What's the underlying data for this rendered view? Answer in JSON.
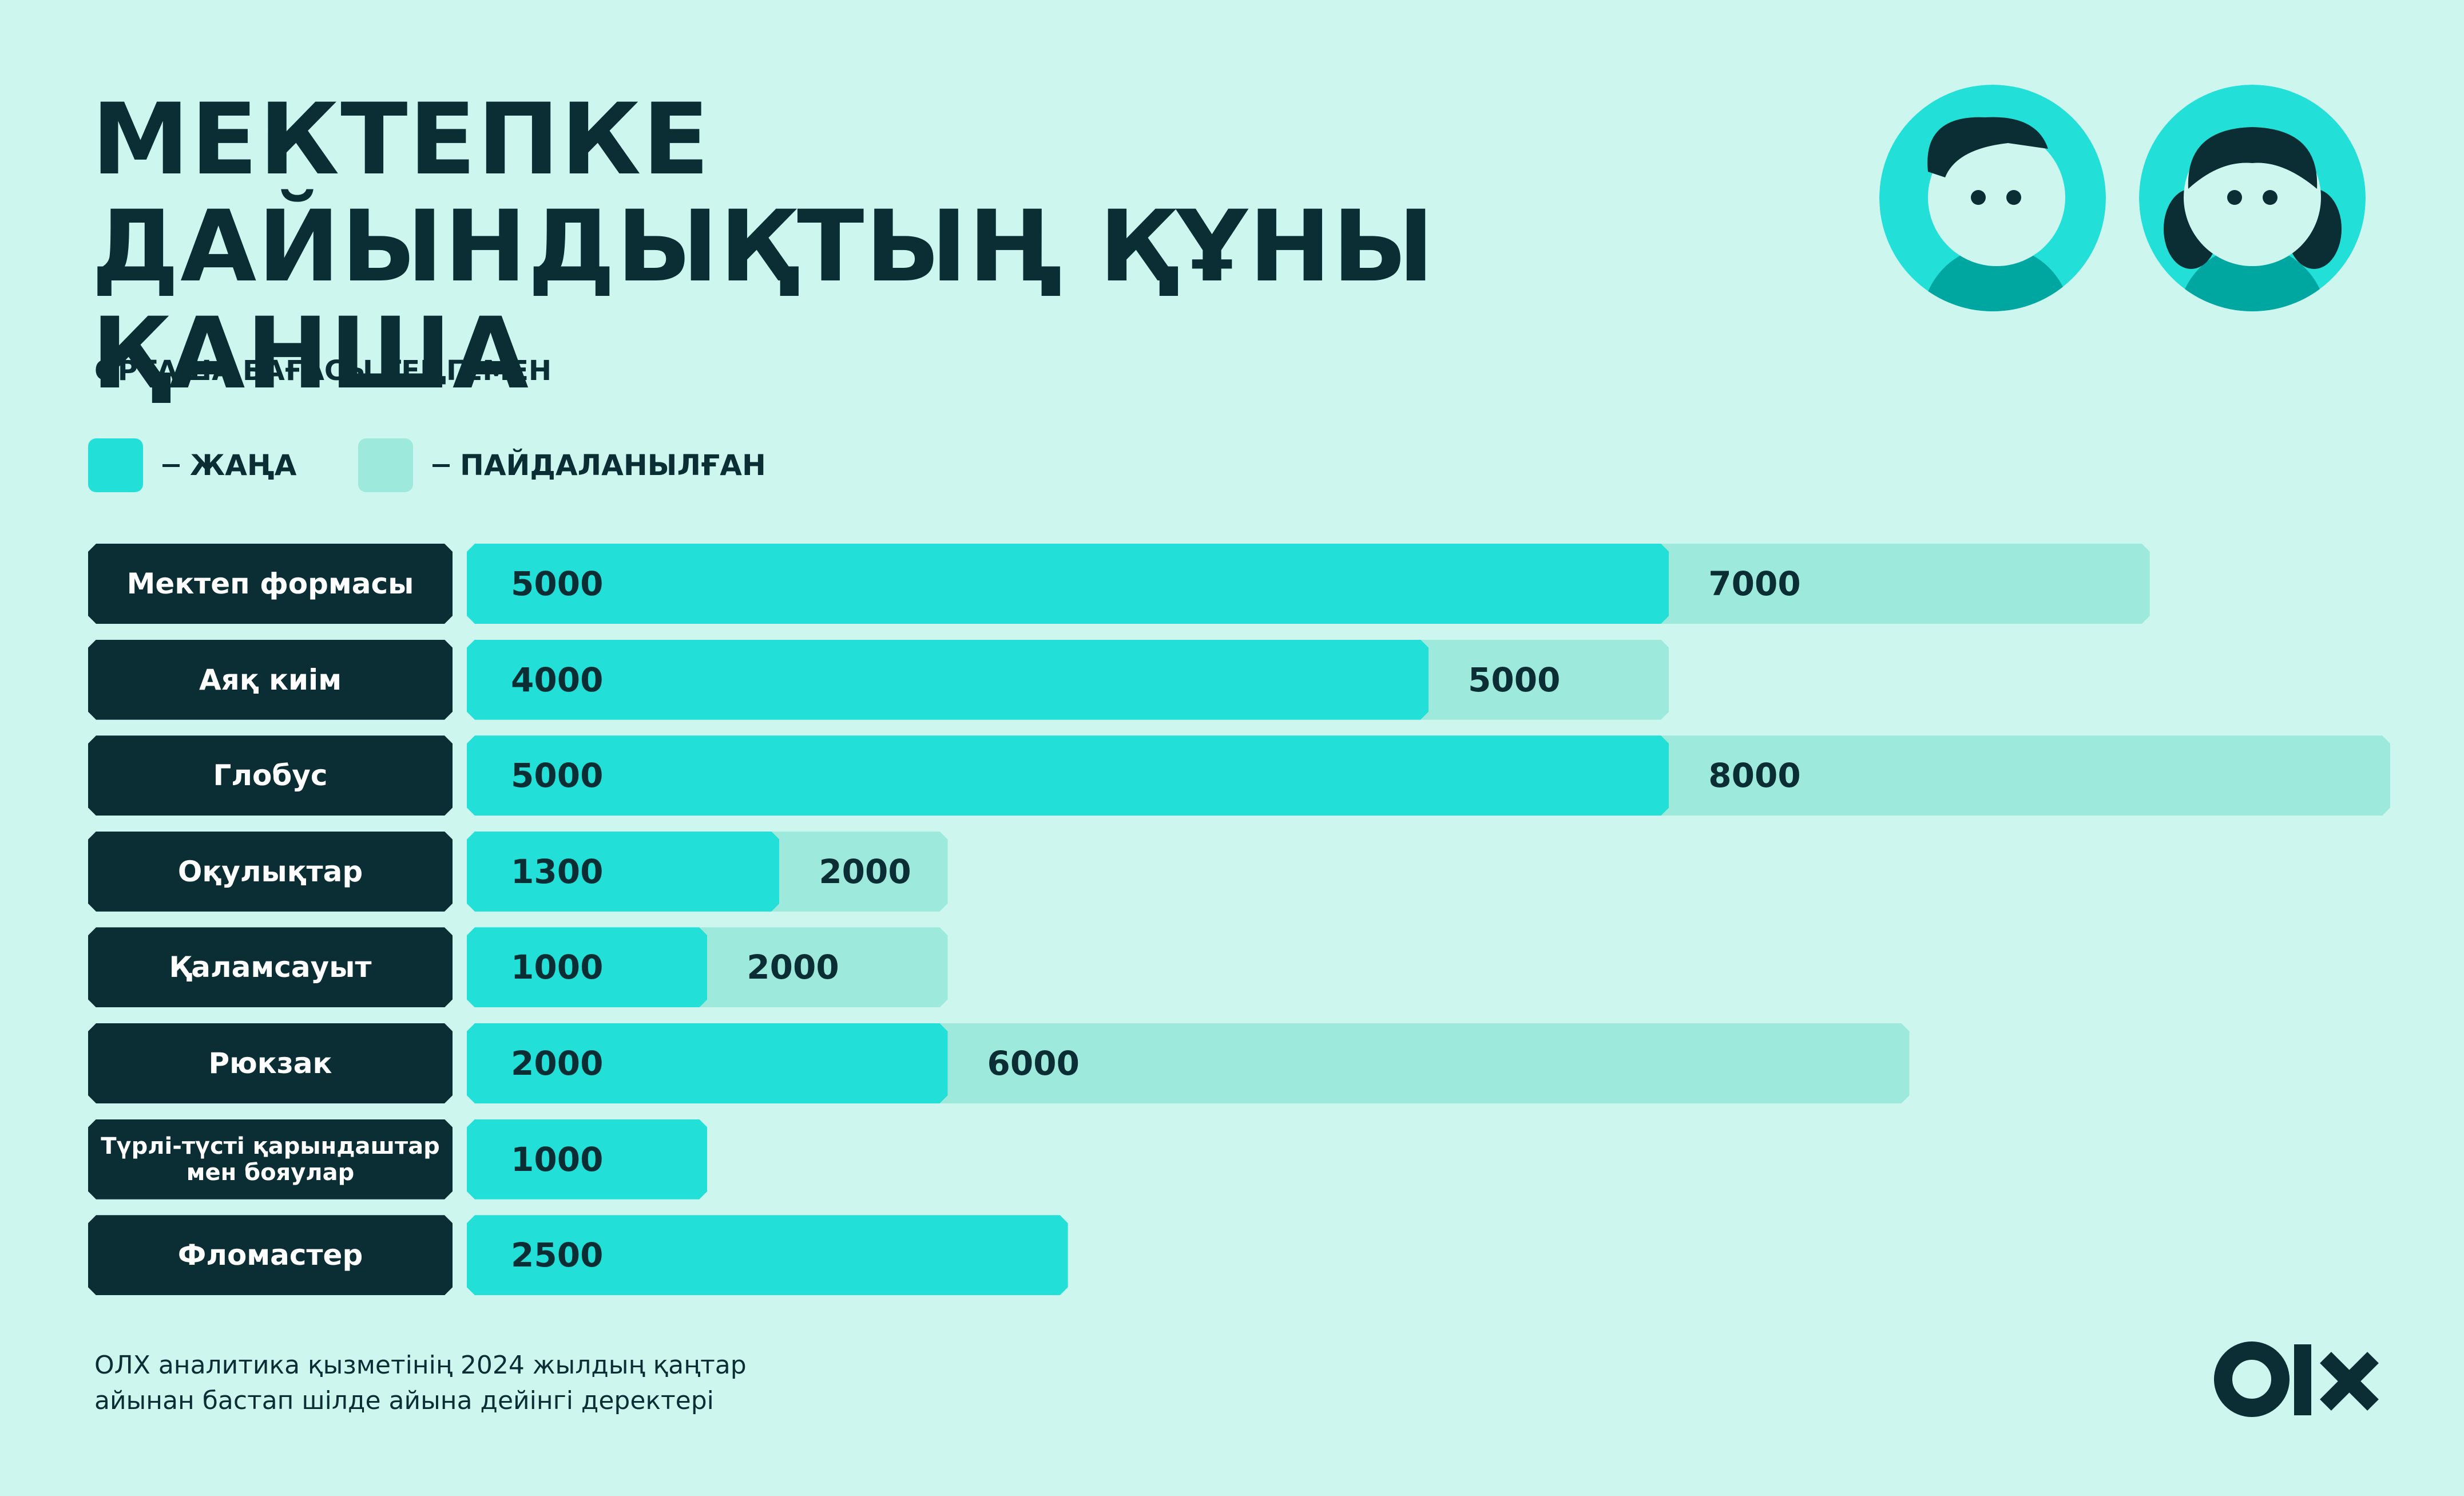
{
  "chart_data": {
    "type": "bar",
    "orientation": "horizontal",
    "title": "МЕКТЕПКЕ ДАЙЫНДЫҚТЫҢ ҚҰНЫ ҚАНША",
    "subtitle": "ОРТАША БАҒАСЫ ТЕҢГЕМЕН",
    "categories": [
      "Мектеп формасы",
      "Аяқ киім",
      "Глобус",
      "Оқулықтар",
      "Қаламсауыт",
      "Рюкзак",
      "Түрлі-түсті қарындаштар мен бояулар",
      "Фломастер"
    ],
    "series": [
      {
        "name": "ЖАҢА",
        "color": "#22dfd8",
        "values": [
          5000,
          4000,
          5000,
          1300,
          1000,
          2000,
          1000,
          2500
        ]
      },
      {
        "name": "ПАЙДАЛАНЫЛҒАН",
        "color": "#9de9dc",
        "values": [
          7000,
          5000,
          8000,
          2000,
          2000,
          6000,
          null,
          null
        ]
      }
    ],
    "legend": "top-left",
    "footnote": "ОЛХ аналитика қызметінің 2024 жылдың қаңтар айынан бастап шілде айына дейінгі деректері"
  }
}
